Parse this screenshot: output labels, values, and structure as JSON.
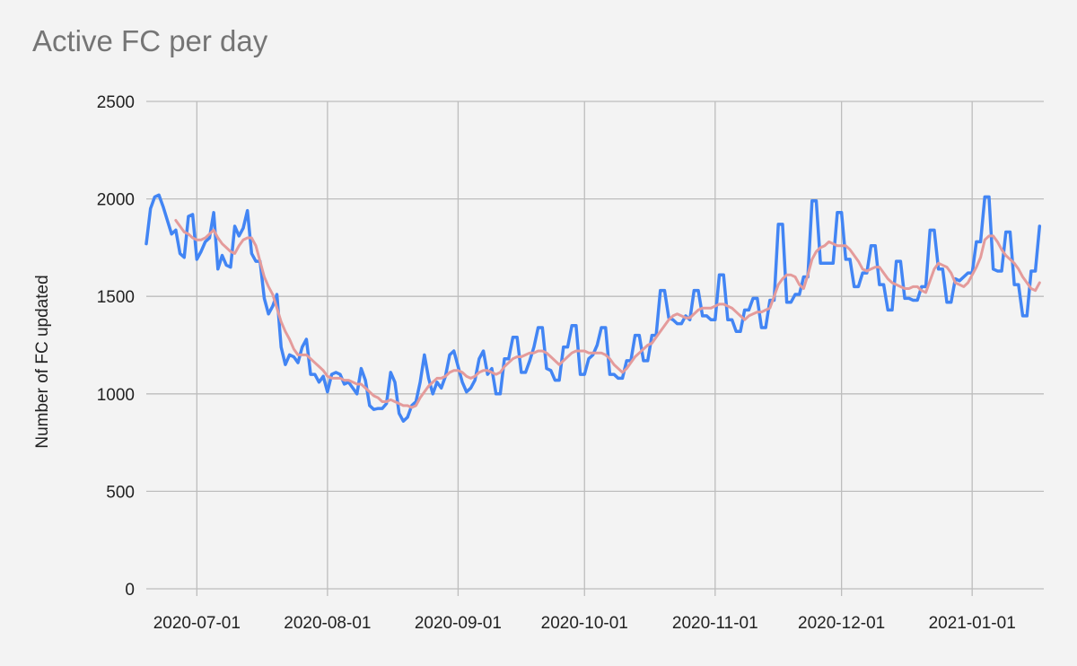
{
  "chart_data": {
    "type": "line",
    "title": "Active FC per day",
    "y_label": "Number of FC updated",
    "x": [
      "2020-06-19",
      "2020-06-20",
      "2020-06-21",
      "2020-06-22",
      "2020-06-23",
      "2020-06-24",
      "2020-06-25",
      "2020-06-26",
      "2020-06-27",
      "2020-06-28",
      "2020-06-29",
      "2020-06-30",
      "2020-07-01",
      "2020-07-02",
      "2020-07-03",
      "2020-07-04",
      "2020-07-05",
      "2020-07-06",
      "2020-07-07",
      "2020-07-08",
      "2020-07-09",
      "2020-07-10",
      "2020-07-11",
      "2020-07-12",
      "2020-07-13",
      "2020-07-14",
      "2020-07-15",
      "2020-07-16",
      "2020-07-17",
      "2020-07-18",
      "2020-07-19",
      "2020-07-20",
      "2020-07-21",
      "2020-07-22",
      "2020-07-23",
      "2020-07-24",
      "2020-07-25",
      "2020-07-26",
      "2020-07-27",
      "2020-07-28",
      "2020-07-29",
      "2020-07-30",
      "2020-07-31",
      "2020-08-01",
      "2020-08-02",
      "2020-08-03",
      "2020-08-04",
      "2020-08-05",
      "2020-08-06",
      "2020-08-07",
      "2020-08-08",
      "2020-08-09",
      "2020-08-10",
      "2020-08-11",
      "2020-08-12",
      "2020-08-13",
      "2020-08-14",
      "2020-08-15",
      "2020-08-16",
      "2020-08-17",
      "2020-08-18",
      "2020-08-19",
      "2020-08-20",
      "2020-08-21",
      "2020-08-22",
      "2020-08-23",
      "2020-08-24",
      "2020-08-25",
      "2020-08-26",
      "2020-08-27",
      "2020-08-28",
      "2020-08-29",
      "2020-08-30",
      "2020-08-31",
      "2020-09-01",
      "2020-09-02",
      "2020-09-03",
      "2020-09-04",
      "2020-09-05",
      "2020-09-06",
      "2020-09-07",
      "2020-09-08",
      "2020-09-09",
      "2020-09-10",
      "2020-09-11",
      "2020-09-12",
      "2020-09-13",
      "2020-09-14",
      "2020-09-15",
      "2020-09-16",
      "2020-09-17",
      "2020-09-18",
      "2020-09-19",
      "2020-09-20",
      "2020-09-21",
      "2020-09-22",
      "2020-09-23",
      "2020-09-24",
      "2020-09-25",
      "2020-09-26",
      "2020-09-27",
      "2020-09-28",
      "2020-09-29",
      "2020-09-30",
      "2020-10-01",
      "2020-10-02",
      "2020-10-03",
      "2020-10-04",
      "2020-10-05",
      "2020-10-06",
      "2020-10-07",
      "2020-10-08",
      "2020-10-09",
      "2020-10-10",
      "2020-10-11",
      "2020-10-12",
      "2020-10-13",
      "2020-10-14",
      "2020-10-15",
      "2020-10-16",
      "2020-10-17",
      "2020-10-18",
      "2020-10-19",
      "2020-10-20",
      "2020-10-21",
      "2020-10-22",
      "2020-10-23",
      "2020-10-24",
      "2020-10-25",
      "2020-10-26",
      "2020-10-27",
      "2020-10-28",
      "2020-10-29",
      "2020-10-30",
      "2020-10-31",
      "2020-11-01",
      "2020-11-02",
      "2020-11-03",
      "2020-11-04",
      "2020-11-05",
      "2020-11-06",
      "2020-11-07",
      "2020-11-08",
      "2020-11-09",
      "2020-11-10",
      "2020-11-11",
      "2020-11-12",
      "2020-11-13",
      "2020-11-14",
      "2020-11-15",
      "2020-11-16",
      "2020-11-17",
      "2020-11-18",
      "2020-11-19",
      "2020-11-20",
      "2020-11-21",
      "2020-11-22",
      "2020-11-23",
      "2020-11-24",
      "2020-11-25",
      "2020-11-26",
      "2020-11-27",
      "2020-11-28",
      "2020-11-29",
      "2020-11-30",
      "2020-12-01",
      "2020-12-02",
      "2020-12-03",
      "2020-12-04",
      "2020-12-05",
      "2020-12-06",
      "2020-12-07",
      "2020-12-08",
      "2020-12-09",
      "2020-12-10",
      "2020-12-11",
      "2020-12-12",
      "2020-12-13",
      "2020-12-14",
      "2020-12-15",
      "2020-12-16",
      "2020-12-17",
      "2020-12-18",
      "2020-12-19",
      "2020-12-20",
      "2020-12-21",
      "2020-12-22",
      "2020-12-23",
      "2020-12-24",
      "2020-12-25",
      "2020-12-26",
      "2020-12-27",
      "2020-12-28",
      "2020-12-29",
      "2020-12-30",
      "2020-12-31",
      "2021-01-01",
      "2021-01-02",
      "2021-01-03",
      "2021-01-04",
      "2021-01-05",
      "2021-01-06",
      "2021-01-07",
      "2021-01-08",
      "2021-01-09",
      "2021-01-10",
      "2021-01-11",
      "2021-01-12",
      "2021-01-13",
      "2021-01-14",
      "2021-01-15",
      "2021-01-16",
      "2021-01-17"
    ],
    "series": [
      {
        "color": "#4285f4",
        "values": [
          1770,
          1950,
          2010,
          2020,
          1960,
          1890,
          1820,
          1840,
          1720,
          1700,
          1910,
          1920,
          1690,
          1730,
          1780,
          1800,
          1930,
          1640,
          1710,
          1660,
          1650,
          1860,
          1810,
          1850,
          1940,
          1720,
          1680,
          1680,
          1490,
          1410,
          1450,
          1510,
          1240,
          1150,
          1200,
          1190,
          1160,
          1240,
          1280,
          1100,
          1100,
          1060,
          1090,
          1010,
          1100,
          1110,
          1100,
          1050,
          1060,
          1030,
          1000,
          1130,
          1070,
          940,
          920,
          925,
          925,
          950,
          1110,
          1060,
          900,
          860,
          880,
          940,
          960,
          1060,
          1200,
          1080,
          1000,
          1060,
          1030,
          1090,
          1200,
          1220,
          1140,
          1060,
          1010,
          1030,
          1070,
          1180,
          1220,
          1100,
          1130,
          1000,
          1000,
          1180,
          1180,
          1290,
          1290,
          1110,
          1110,
          1170,
          1240,
          1340,
          1340,
          1130,
          1120,
          1070,
          1070,
          1240,
          1240,
          1350,
          1350,
          1100,
          1100,
          1180,
          1200,
          1250,
          1340,
          1340,
          1100,
          1100,
          1080,
          1080,
          1170,
          1170,
          1300,
          1300,
          1170,
          1170,
          1300,
          1300,
          1530,
          1530,
          1390,
          1380,
          1360,
          1360,
          1400,
          1380,
          1530,
          1530,
          1400,
          1400,
          1380,
          1380,
          1610,
          1610,
          1380,
          1380,
          1320,
          1320,
          1430,
          1430,
          1490,
          1490,
          1340,
          1340,
          1480,
          1480,
          1870,
          1870,
          1470,
          1470,
          1510,
          1510,
          1600,
          1600,
          1990,
          1990,
          1670,
          1670,
          1670,
          1670,
          1930,
          1930,
          1690,
          1690,
          1550,
          1550,
          1620,
          1620,
          1760,
          1760,
          1560,
          1560,
          1430,
          1430,
          1680,
          1680,
          1490,
          1490,
          1480,
          1480,
          1550,
          1550,
          1840,
          1840,
          1640,
          1640,
          1470,
          1470,
          1590,
          1580,
          1600,
          1620,
          1620,
          1780,
          1780,
          2010,
          2010,
          1640,
          1630,
          1630,
          1830,
          1830,
          1560,
          1560,
          1400,
          1400,
          1630,
          1630,
          1860
        ]
      },
      {
        "color": "#e49b9b",
        "values": [
          null,
          null,
          null,
          null,
          null,
          null,
          null,
          1890,
          1860,
          1830,
          1820,
          1800,
          1790,
          1790,
          1800,
          1820,
          1840,
          1800,
          1770,
          1750,
          1730,
          1720,
          1760,
          1790,
          1800,
          1800,
          1760,
          1680,
          1600,
          1550,
          1510,
          1440,
          1370,
          1320,
          1280,
          1230,
          1200,
          1200,
          1200,
          1180,
          1160,
          1140,
          1120,
          1090,
          1080,
          1080,
          1080,
          1070,
          1070,
          1060,
          1050,
          1050,
          1030,
          1010,
          990,
          980,
          960,
          960,
          970,
          960,
          950,
          940,
          940,
          930,
          940,
          980,
          1010,
          1040,
          1060,
          1080,
          1080,
          1090,
          1110,
          1120,
          1120,
          1110,
          1090,
          1080,
          1090,
          1110,
          1120,
          1120,
          1110,
          1100,
          1110,
          1140,
          1160,
          1180,
          1190,
          1190,
          1200,
          1210,
          1210,
          1220,
          1220,
          1210,
          1190,
          1170,
          1150,
          1170,
          1190,
          1210,
          1220,
          1220,
          1220,
          1210,
          1210,
          1210,
          1210,
          1200,
          1180,
          1150,
          1130,
          1110,
          1130,
          1160,
          1190,
          1210,
          1230,
          1250,
          1260,
          1290,
          1320,
          1350,
          1380,
          1400,
          1410,
          1400,
          1390,
          1390,
          1410,
          1430,
          1440,
          1440,
          1440,
          1450,
          1460,
          1460,
          1450,
          1440,
          1420,
          1400,
          1380,
          1400,
          1410,
          1420,
          1420,
          1430,
          1440,
          1500,
          1560,
          1590,
          1610,
          1610,
          1600,
          1560,
          1540,
          1610,
          1690,
          1730,
          1750,
          1760,
          1780,
          1770,
          1760,
          1760,
          1760,
          1740,
          1710,
          1680,
          1640,
          1630,
          1640,
          1650,
          1650,
          1620,
          1590,
          1570,
          1560,
          1550,
          1540,
          1540,
          1550,
          1550,
          1530,
          1520,
          1580,
          1640,
          1670,
          1660,
          1650,
          1620,
          1570,
          1560,
          1550,
          1570,
          1610,
          1650,
          1700,
          1790,
          1810,
          1810,
          1780,
          1740,
          1710,
          1690,
          1670,
          1640,
          1600,
          1570,
          1540,
          1530,
          1570
        ]
      }
    ],
    "xlim": [
      "2020-06-19",
      "2021-01-18"
    ],
    "xticks": [
      "2020-07-01",
      "2020-08-01",
      "2020-09-01",
      "2020-10-01",
      "2020-11-01",
      "2020-12-01",
      "2021-01-01"
    ],
    "ylim": [
      0,
      2500
    ],
    "yticks": [
      0,
      500,
      1000,
      1500,
      2000,
      2500
    ],
    "grid": true
  }
}
